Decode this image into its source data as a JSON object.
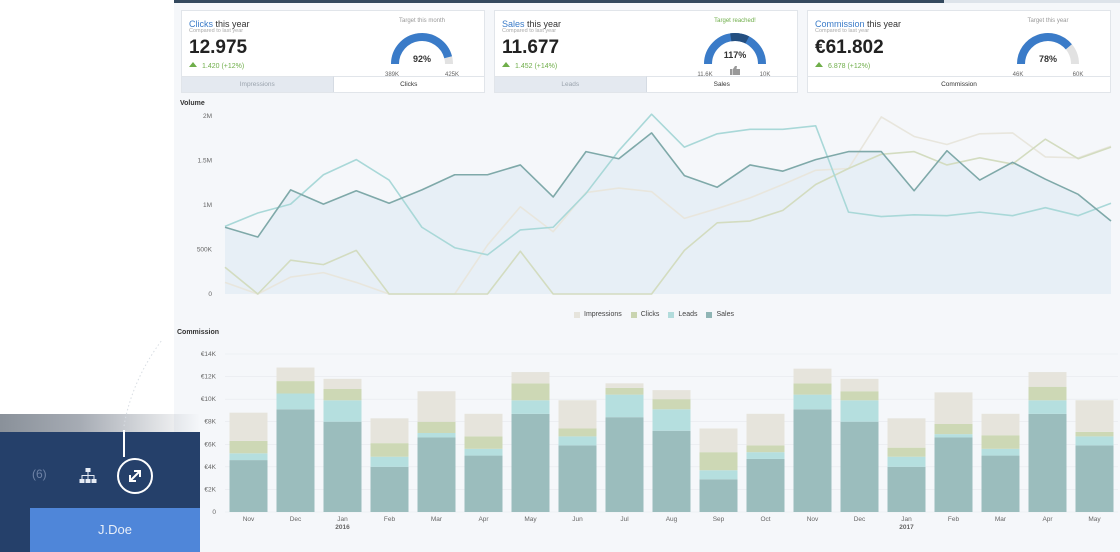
{
  "cards": [
    {
      "highlight": "Clicks",
      "title_rest": " this year",
      "subtitle": "Compared to last year",
      "value": "12.975",
      "change": "1.420 (+12%)",
      "gauge": {
        "label": "Target this month",
        "percent_text": "92%",
        "min": "389K",
        "max": "425K",
        "fraction": 0.92,
        "reached": false
      },
      "tabs": [
        {
          "label": "Impressions",
          "active": false
        },
        {
          "label": "Clicks",
          "active": true
        }
      ]
    },
    {
      "highlight": "Sales",
      "title_rest": " this year",
      "subtitle": "Compared to last year",
      "value": "11.677",
      "change": "1.452 (+14%)",
      "gauge": {
        "label": "Target reached!",
        "percent_text": "117%",
        "min": "11.6K",
        "max": "10K",
        "fraction": 1.0,
        "reached": true,
        "icon": "thumbs-up-icon"
      },
      "tabs": [
        {
          "label": "Leads",
          "active": false
        },
        {
          "label": "Sales",
          "active": true
        }
      ]
    },
    {
      "highlight": "Commission",
      "title_rest": " this year",
      "subtitle": "Compared to last year",
      "value": "€61.802",
      "change": "6.878 (+12%)",
      "gauge": {
        "label": "Target this year",
        "percent_text": "78%",
        "min": "46K",
        "max": "60K",
        "fraction": 0.78,
        "reached": false
      },
      "tabs": [
        {
          "label": "Commission",
          "active": true
        }
      ]
    }
  ],
  "volume_chart": {
    "title": "Volume",
    "y_ticks": [
      "0",
      "500K",
      "1M",
      "1.5M",
      "2M"
    ],
    "legend": [
      {
        "label": "Impressions",
        "color": "#e6e4dc"
      },
      {
        "label": "Clicks",
        "color": "#c9d4b0"
      },
      {
        "label": "Leads",
        "color": "#b2dcdc"
      },
      {
        "label": "Sales",
        "color": "#8fb5b5"
      }
    ]
  },
  "commission_chart": {
    "title": "Commission",
    "y_ticks": [
      "0",
      "€2K",
      "€4K",
      "€6K",
      "€8K",
      "€10K",
      "€12K",
      "€14K"
    ],
    "x_labels": [
      {
        "month": "Nov",
        "year": ""
      },
      {
        "month": "Dec",
        "year": ""
      },
      {
        "month": "Jan",
        "year": "2016"
      },
      {
        "month": "Feb",
        "year": ""
      },
      {
        "month": "Mar",
        "year": ""
      },
      {
        "month": "Apr",
        "year": ""
      },
      {
        "month": "May",
        "year": ""
      },
      {
        "month": "Jun",
        "year": ""
      },
      {
        "month": "Jul",
        "year": ""
      },
      {
        "month": "Aug",
        "year": ""
      },
      {
        "month": "Sep",
        "year": ""
      },
      {
        "month": "Oct",
        "year": ""
      },
      {
        "month": "Nov",
        "year": ""
      },
      {
        "month": "Dec",
        "year": ""
      },
      {
        "month": "Jan",
        "year": "2017"
      },
      {
        "month": "Feb",
        "year": ""
      },
      {
        "month": "Mar",
        "year": ""
      },
      {
        "month": "Apr",
        "year": ""
      },
      {
        "month": "May",
        "year": ""
      }
    ]
  },
  "chart_data": [
    {
      "type": "line",
      "title": "Volume",
      "ylim": [
        0,
        2000000
      ],
      "series": [
        {
          "name": "Sales",
          "kind": "area",
          "color": "#7fa9a9",
          "values": [
            750000,
            640000,
            1170000,
            1010000,
            1160000,
            1020000,
            1170000,
            1340000,
            1340000,
            1450000,
            1090000,
            1600000,
            1520000,
            1810000,
            1330000,
            1200000,
            1450000,
            1380000,
            1510000,
            1600000,
            1600000,
            1160000,
            1610000,
            1280000,
            1480000,
            1290000,
            1120000,
            820000
          ]
        },
        {
          "name": "Leads",
          "kind": "line",
          "color": "#a9d8d8",
          "values": [
            760000,
            910000,
            1010000,
            1340000,
            1510000,
            1280000,
            750000,
            520000,
            440000,
            720000,
            750000,
            1130000,
            1610000,
            2020000,
            1650000,
            1800000,
            1850000,
            1850000,
            1890000,
            920000,
            870000,
            890000,
            880000,
            920000,
            880000,
            970000,
            880000,
            1020000
          ]
        },
        {
          "name": "Clicks",
          "kind": "line",
          "color": "#d3dcc0",
          "values": [
            300000,
            0,
            380000,
            330000,
            490000,
            0,
            0,
            0,
            0,
            480000,
            0,
            0,
            0,
            0,
            490000,
            800000,
            820000,
            940000,
            1230000,
            1410000,
            1570000,
            1600000,
            1450000,
            1530000,
            1460000,
            1740000,
            1520000,
            1650000
          ]
        },
        {
          "name": "Impressions",
          "kind": "line",
          "color": "#e8e6dd",
          "values": [
            130000,
            0,
            190000,
            240000,
            130000,
            0,
            0,
            0,
            550000,
            980000,
            700000,
            1140000,
            1190000,
            1150000,
            850000,
            960000,
            1080000,
            1230000,
            1390000,
            1410000,
            1990000,
            1770000,
            1680000,
            1800000,
            1810000,
            1540000,
            1530000,
            1660000
          ]
        }
      ]
    },
    {
      "type": "bar",
      "title": "Commission",
      "stacked": true,
      "categories": [
        "Nov",
        "Dec",
        "Jan 2016",
        "Feb",
        "Mar",
        "Apr",
        "May",
        "Jun",
        "Jul",
        "Aug",
        "Sep",
        "Oct",
        "Nov",
        "Dec",
        "Jan 2017",
        "Feb",
        "Mar",
        "Apr",
        "May"
      ],
      "ylim": [
        0,
        14000
      ],
      "series": [
        {
          "name": "Sales",
          "color": "#9bbdbd",
          "values": [
            4600,
            9100,
            8000,
            4000,
            6600,
            5000,
            8700,
            5900,
            8400,
            7200,
            2900,
            4700,
            9100,
            8000,
            4000,
            6600,
            5000,
            8700,
            5900
          ]
        },
        {
          "name": "Leads",
          "color": "#b5dfdf",
          "values": [
            600,
            1400,
            1900,
            900,
            400,
            600,
            1200,
            800,
            2000,
            1900,
            800,
            600,
            1300,
            1900,
            900,
            300,
            600,
            1200,
            800
          ]
        },
        {
          "name": "Clicks",
          "color": "#cdd8b5",
          "values": [
            1100,
            1100,
            1000,
            1200,
            1000,
            1100,
            1500,
            700,
            600,
            900,
            1600,
            600,
            1000,
            800,
            800,
            900,
            1200,
            1200,
            400
          ]
        },
        {
          "name": "Impressions",
          "color": "#e6e4dc",
          "values": [
            2500,
            1200,
            900,
            2200,
            2700,
            2000,
            1000,
            2500,
            400,
            800,
            2100,
            2800,
            1300,
            1100,
            2600,
            2800,
            1900,
            1300,
            2800
          ]
        }
      ]
    }
  ],
  "sidebar": {
    "count": "(6)",
    "user": "J.Doe",
    "network_icon": "sitemap-icon",
    "expand_icon": "expand-icon"
  }
}
